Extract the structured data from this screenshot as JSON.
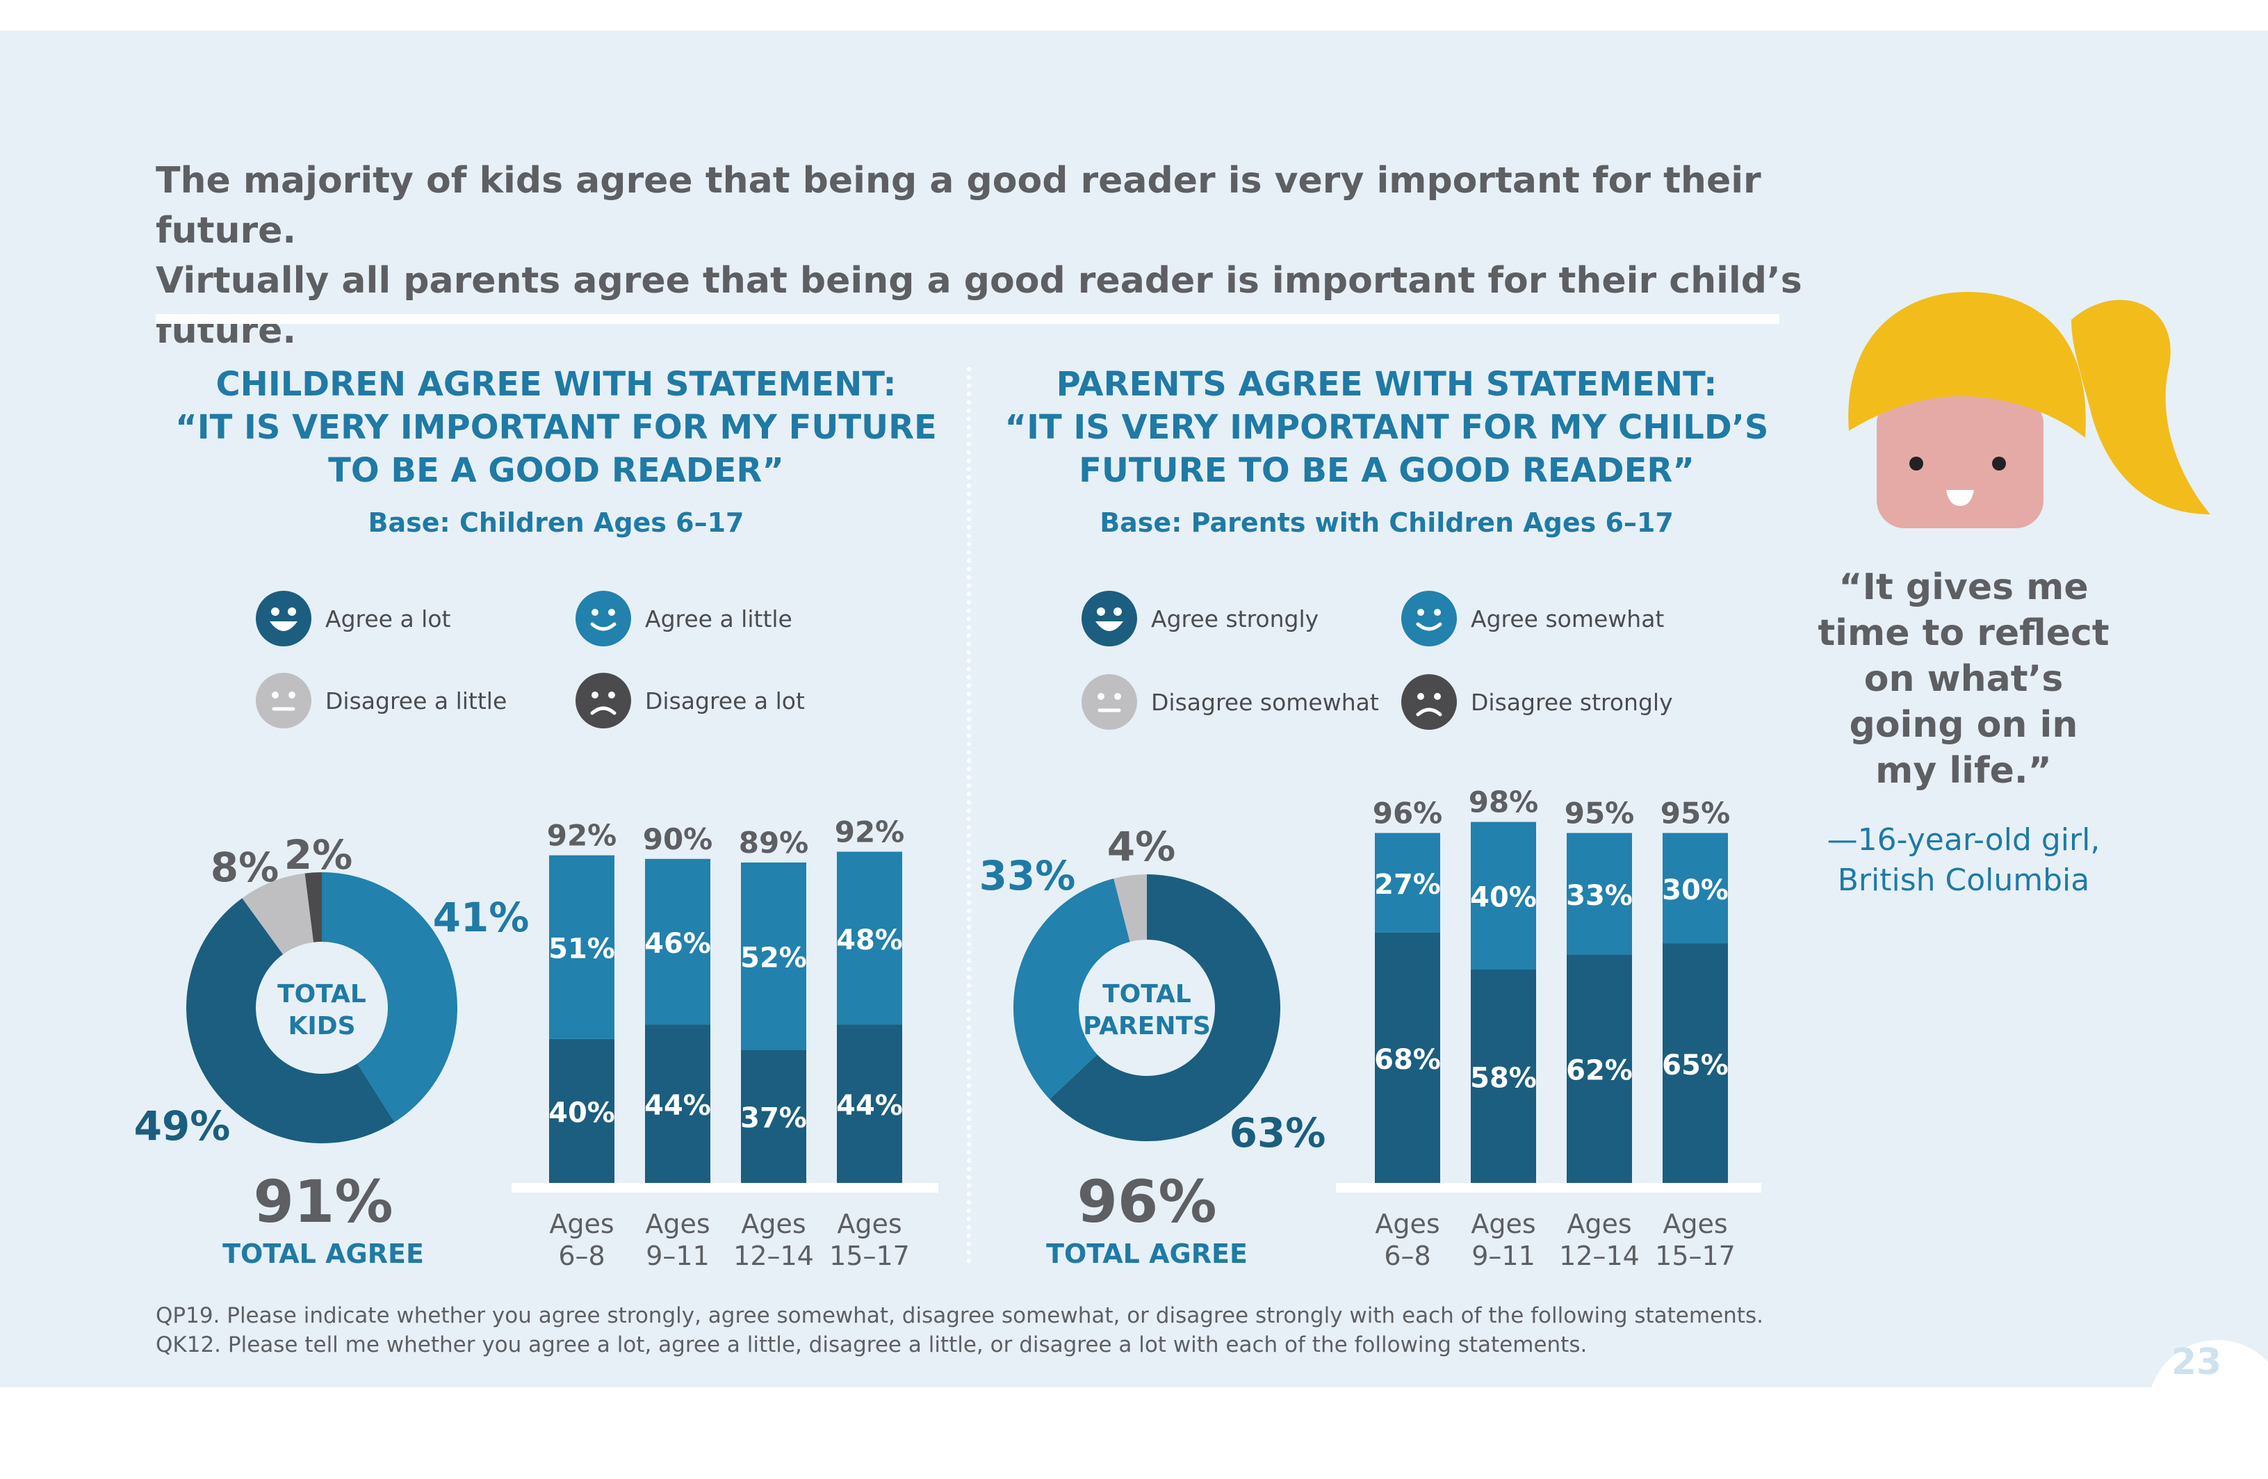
{
  "headline": {
    "line1": "The majority of kids agree that being a good reader is very important for their future.",
    "line2": "Virtually all parents agree that being a good reader is important for their child’s future."
  },
  "children": {
    "title_lines": [
      "CHILDREN AGREE WITH STATEMENT:",
      "“IT IS VERY IMPORTANT FOR MY FUTURE",
      "TO BE A GOOD READER”"
    ],
    "base": "Base: Children Ages 6–17",
    "legend": [
      "Agree a lot",
      "Agree a little",
      "Disagree a little",
      "Disagree a lot"
    ],
    "total_value": "91%",
    "total_label": "TOTAL AGREE",
    "donut_center": [
      "TOTAL",
      "KIDS"
    ]
  },
  "parents": {
    "title_lines": [
      "PARENTS AGREE WITH STATEMENT:",
      "“IT IS VERY IMPORTANT FOR MY CHILD’S",
      "FUTURE TO BE A GOOD READER”"
    ],
    "base": "Base: Parents with Children Ages 6–17",
    "legend": [
      "Agree strongly",
      "Agree somewhat",
      "Disagree somewhat",
      "Disagree strongly"
    ],
    "total_value": "96%",
    "total_label": "TOTAL AGREE",
    "donut_center": [
      "TOTAL",
      "PARENTS"
    ]
  },
  "quote": {
    "lines": [
      "“It gives me",
      "time to reflect",
      "on what’s",
      "going on in",
      "my life.”"
    ],
    "attribution_lines": [
      "—16-year-old girl,",
      "British Columbia"
    ]
  },
  "footnotes": [
    "QP19. Please indicate whether you agree strongly, agree somewhat, disagree somewhat, or disagree strongly with each of the following statements.",
    "QK12. Please tell me whether you agree a lot, agree a little, disagree a little, or disagree a lot with each of the following statements."
  ],
  "page_number": "23",
  "colors": {
    "dark": "#1b5e7f",
    "mid": "#2281ad",
    "light_grey": "#bfbfc2",
    "dark_grey": "#4b4b4d",
    "text_grey": "#5d5f63",
    "accent_blue": "#1f7aa5",
    "hair": "#f2bc1b",
    "skin": "#e5aaa6"
  },
  "chart_data": [
    {
      "type": "pie",
      "name": "children-donut",
      "center_label": "TOTAL KIDS",
      "slices": [
        {
          "label": "Agree a lot",
          "value": 49,
          "text": "49%"
        },
        {
          "label": "Agree a little",
          "value": 41,
          "text": "41%"
        },
        {
          "label": "Disagree a little",
          "value": 8,
          "text": "8%"
        },
        {
          "label": "Disagree a lot",
          "value": 2,
          "text": "2%"
        }
      ]
    },
    {
      "type": "bar",
      "name": "children-bars",
      "stacked": true,
      "categories": [
        "Ages 6–8",
        "Ages 9–11",
        "Ages 12–14",
        "Ages 15–17"
      ],
      "category_lines": [
        [
          "Ages",
          "6–8"
        ],
        [
          "Ages",
          "9–11"
        ],
        [
          "Ages",
          "12–14"
        ],
        [
          "Ages",
          "15–17"
        ]
      ],
      "series": [
        {
          "name": "Agree a lot",
          "values": [
            40,
            44,
            37,
            44
          ]
        },
        {
          "name": "Agree a little",
          "values": [
            51,
            46,
            52,
            48
          ]
        }
      ],
      "totals": [
        92,
        90,
        89,
        92
      ],
      "ylim": [
        0,
        100
      ]
    },
    {
      "type": "pie",
      "name": "parents-donut",
      "center_label": "TOTAL PARENTS",
      "slices": [
        {
          "label": "Agree strongly",
          "value": 63,
          "text": "63%"
        },
        {
          "label": "Agree somewhat",
          "value": 33,
          "text": "33%"
        },
        {
          "label": "Disagree somewhat",
          "value": 4,
          "text": "4%"
        }
      ]
    },
    {
      "type": "bar",
      "name": "parents-bars",
      "stacked": true,
      "categories": [
        "Ages 6–8",
        "Ages 9–11",
        "Ages 12–14",
        "Ages 15–17"
      ],
      "category_lines": [
        [
          "Ages",
          "6–8"
        ],
        [
          "Ages",
          "9–11"
        ],
        [
          "Ages",
          "12–14"
        ],
        [
          "Ages",
          "15–17"
        ]
      ],
      "series": [
        {
          "name": "Agree strongly",
          "values": [
            68,
            58,
            62,
            65
          ]
        },
        {
          "name": "Agree somewhat",
          "values": [
            27,
            40,
            33,
            30
          ]
        }
      ],
      "totals": [
        96,
        98,
        95,
        95
      ],
      "ylim": [
        0,
        100
      ]
    }
  ]
}
